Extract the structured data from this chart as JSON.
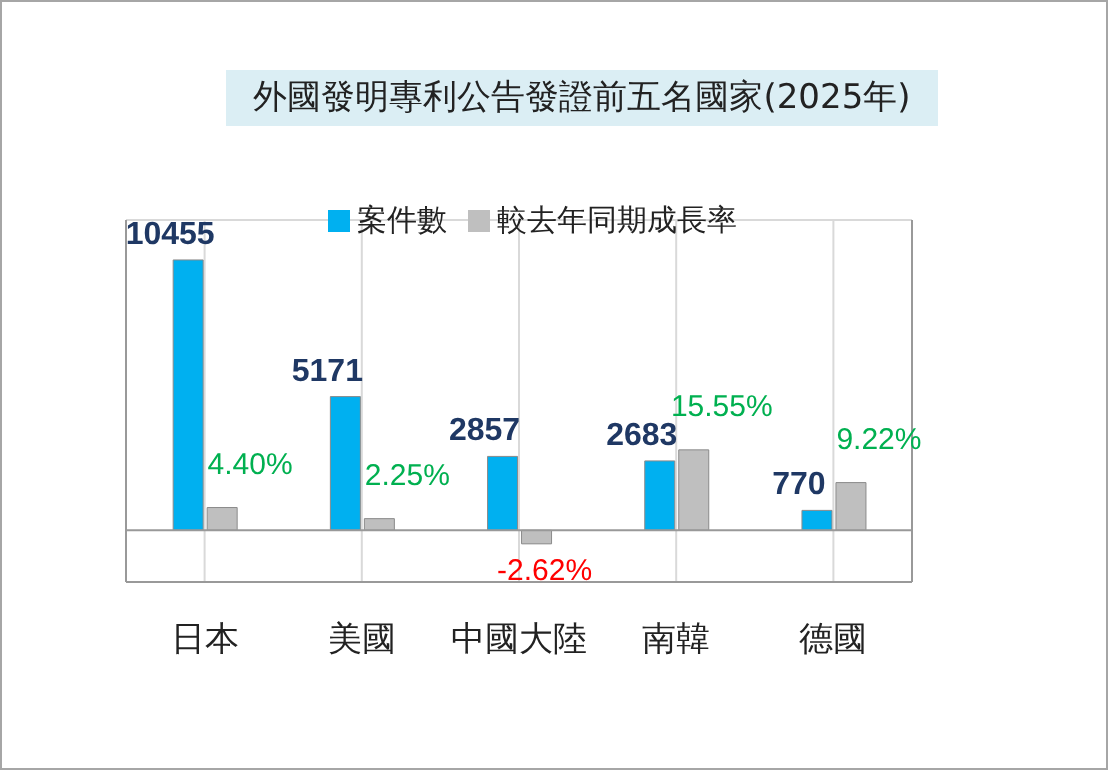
{
  "chart_data": {
    "type": "bar",
    "title": "外國發明專利公告發證前五名國家(2025年)",
    "categories": [
      "日本",
      "美國",
      "中國大陸",
      "南韓",
      "德國"
    ],
    "series": [
      {
        "name": "案件數",
        "color": "#00b0f0",
        "values": [
          10455,
          5171,
          2857,
          2683,
          770
        ],
        "value_labels": [
          "10455",
          "5171",
          "2857",
          "2683",
          "770"
        ]
      },
      {
        "name": "較去年同期成長率",
        "color": "#bfbfbf",
        "axis": "y2",
        "values": [
          4.4,
          2.25,
          -2.62,
          15.55,
          9.22
        ],
        "value_labels": [
          "4.40%",
          "2.25%",
          "-2.62%",
          "15.55%",
          "9.22%"
        ]
      }
    ],
    "ylim": [
      -2000,
      12000
    ],
    "y2lim": [
      -10,
      60
    ],
    "tick_labels": "x",
    "grid": true,
    "legend": "top"
  }
}
